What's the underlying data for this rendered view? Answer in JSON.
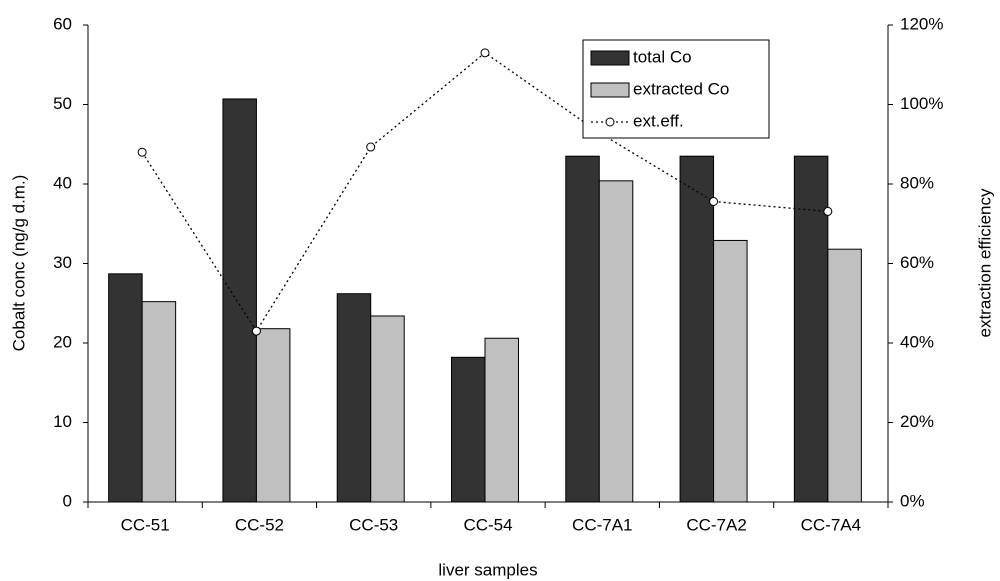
{
  "chart_data": {
    "type": "bar",
    "categories": [
      "CC-51",
      "CC-52",
      "CC-53",
      "CC-54",
      "CC-7A1",
      "CC-7A2",
      "CC-7A4"
    ],
    "series": [
      {
        "name": "total Co",
        "color": "#333333",
        "values": [
          28.7,
          50.7,
          26.2,
          18.2,
          43.5,
          43.5,
          43.5
        ]
      },
      {
        "name": "extracted Co",
        "color": "#c0c0c0",
        "values": [
          25.2,
          21.8,
          23.4,
          20.6,
          40.4,
          32.9,
          31.8
        ]
      },
      {
        "name": "ext.eff.",
        "type": "line",
        "axis": "y2",
        "color": "#000000",
        "values": [
          88,
          43,
          89.3,
          113,
          92.9,
          75.6,
          73.1
        ]
      }
    ],
    "x_label": "liver samples",
    "y_label": "Cobalt conc (ng/g d.m.)",
    "y2_label": "extraction efficiency",
    "ylim": [
      0,
      60
    ],
    "yticks": [
      0,
      10,
      20,
      30,
      40,
      50,
      60
    ],
    "y2lim": [
      0,
      120
    ],
    "y2ticks": [
      {
        "value": 0,
        "label": "0%"
      },
      {
        "value": 20,
        "label": "20%"
      },
      {
        "value": 40,
        "label": "40%"
      },
      {
        "value": 60,
        "label": "60%"
      },
      {
        "value": 80,
        "label": "80%"
      },
      {
        "value": 100,
        "label": "100%"
      },
      {
        "value": 120,
        "label": "120%"
      }
    ],
    "grid": false
  }
}
